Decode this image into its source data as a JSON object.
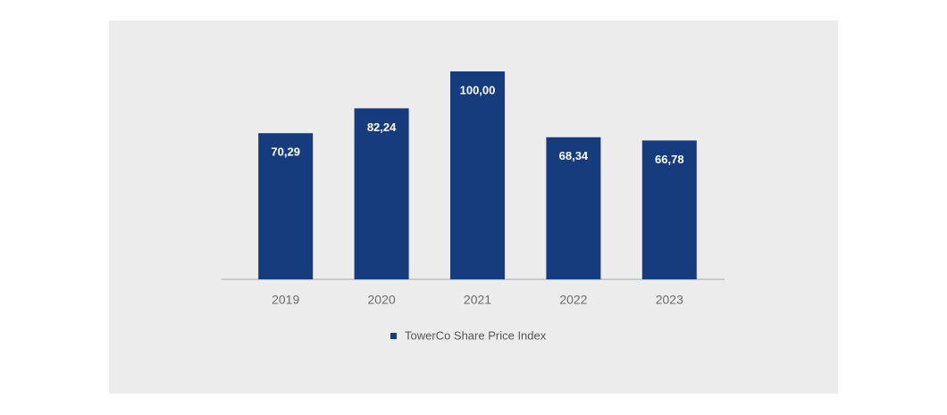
{
  "chart_data": {
    "type": "bar",
    "categories": [
      "2019",
      "2020",
      "2021",
      "2022",
      "2023"
    ],
    "series": [
      {
        "name": "TowerCo Share Price Index",
        "color": "#173c7d",
        "values": [
          70.29,
          82.24,
          100.0,
          68.34,
          66.78
        ],
        "value_labels": [
          "70,29",
          "82,24",
          "100,00",
          "68,34",
          "66,78"
        ]
      }
    ]
  }
}
